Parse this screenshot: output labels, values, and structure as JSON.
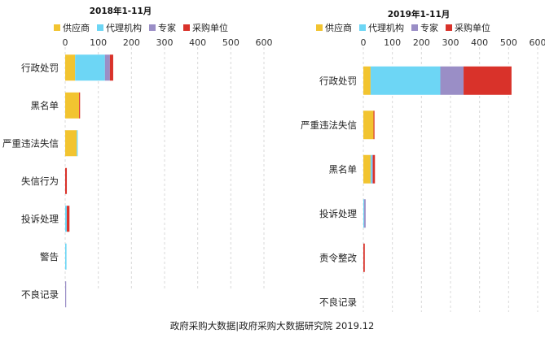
{
  "colors": {
    "供应商": "#F2C430",
    "代理机构": "#6DD6F5",
    "专家": "#9A8EC6",
    "采购单位": "#D9322A"
  },
  "chart_data": [
    {
      "type": "bar",
      "orientation": "horizontal",
      "stacked": true,
      "title": "2018年1-11月",
      "categories": [
        "行政处罚",
        "黑名单",
        "严重违法失信",
        "失信行为",
        "投诉处理",
        "警告",
        "不良记录"
      ],
      "series": [
        {
          "name": "供应商",
          "values": [
            30,
            42,
            35,
            0,
            0,
            0,
            0
          ]
        },
        {
          "name": "代理机构",
          "values": [
            90,
            0,
            2,
            0,
            5,
            4,
            0
          ]
        },
        {
          "name": "专家",
          "values": [
            15,
            0,
            0,
            0,
            0,
            0,
            3
          ]
        },
        {
          "name": "采购单位",
          "values": [
            10,
            2,
            0,
            5,
            8,
            0,
            0
          ]
        }
      ],
      "xlim": [
        0,
        600
      ],
      "ticks": [
        0,
        100,
        200,
        300,
        400,
        500,
        600
      ],
      "grid": true,
      "legend": "top"
    },
    {
      "type": "bar",
      "orientation": "horizontal",
      "stacked": true,
      "title": "2019年1-11月",
      "categories": [
        "行政处罚",
        "严重违法失信",
        "黑名单",
        "投诉处理",
        "责令整改",
        "不良记录"
      ],
      "series": [
        {
          "name": "供应商",
          "values": [
            25,
            35,
            25,
            0,
            0,
            0
          ]
        },
        {
          "name": "代理机构",
          "values": [
            240,
            0,
            5,
            3,
            0,
            0
          ]
        },
        {
          "name": "专家",
          "values": [
            80,
            0,
            3,
            5,
            0,
            0
          ]
        },
        {
          "name": "采购单位",
          "values": [
            165,
            3,
            7,
            0,
            5,
            0
          ]
        }
      ],
      "xlim": [
        0,
        600
      ],
      "ticks": [
        0,
        100,
        200,
        300,
        400,
        500,
        600
      ],
      "grid": true,
      "legend": "top"
    }
  ],
  "footer": "政府采购大数据|政府采购大数据研究院 2019.12"
}
